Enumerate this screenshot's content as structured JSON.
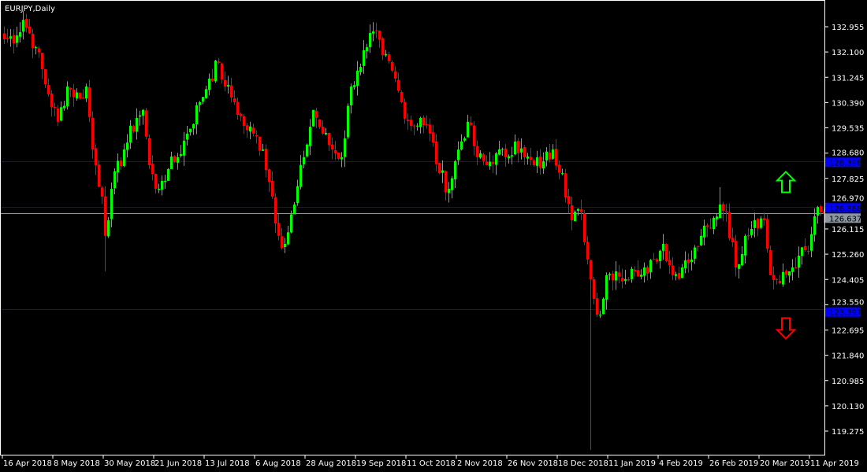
{
  "chart_data": {
    "type": "candlestick",
    "title": "EURJPY,Daily",
    "symbol": "EURJPY",
    "timeframe": "Daily",
    "ylim": [
      118.4,
      133.85
    ],
    "y_ticks": [
      "132.955",
      "132.100",
      "131.245",
      "130.390",
      "129.535",
      "128.680",
      "127.825",
      "126.970",
      "126.115",
      "125.260",
      "124.405",
      "123.550",
      "122.695",
      "121.840",
      "120.985",
      "120.130",
      "119.275"
    ],
    "x_ticks": [
      "16 Apr 2018",
      "8 May 2018",
      "30 May 2018",
      "21 Jun 2018",
      "13 Jul 2018",
      "6 Aug 2018",
      "28 Aug 2018",
      "19 Sep 2018",
      "11 Oct 2018",
      "2 Nov 2018",
      "26 Nov 2018",
      "18 Dec 2018",
      "11 Jan 2019",
      "4 Feb 2019",
      "26 Feb 2019",
      "20 Mar 2019",
      "11 Apr 2019"
    ],
    "bars_per_x_tick": 16,
    "close_keypoints": [
      [
        0,
        132.53
      ],
      [
        4,
        132.66
      ],
      [
        6,
        133.19
      ],
      [
        10,
        132.26
      ],
      [
        14,
        130.67
      ],
      [
        17,
        129.74
      ],
      [
        20,
        130.93
      ],
      [
        24,
        130.53
      ],
      [
        26,
        130.93
      ],
      [
        28,
        128.8
      ],
      [
        31,
        127.21
      ],
      [
        32,
        125.88
      ],
      [
        34,
        127.47
      ],
      [
        38,
        128.8
      ],
      [
        42,
        129.87
      ],
      [
        44,
        130.14
      ],
      [
        46,
        128.27
      ],
      [
        48,
        127.47
      ],
      [
        50,
        127.74
      ],
      [
        52,
        128.14
      ],
      [
        55,
        128.54
      ],
      [
        58,
        129.34
      ],
      [
        62,
        130.4
      ],
      [
        65,
        131.2
      ],
      [
        68,
        131.73
      ],
      [
        70,
        130.93
      ],
      [
        73,
        130.4
      ],
      [
        76,
        129.6
      ],
      [
        79,
        129.34
      ],
      [
        82,
        128.8
      ],
      [
        85,
        127.21
      ],
      [
        87,
        125.88
      ],
      [
        89,
        125.61
      ],
      [
        92,
        126.94
      ],
      [
        95,
        128.54
      ],
      [
        98,
        130.14
      ],
      [
        101,
        129.34
      ],
      [
        104,
        128.8
      ],
      [
        107,
        128.54
      ],
      [
        110,
        130.93
      ],
      [
        112,
        131.47
      ],
      [
        115,
        132.26
      ],
      [
        117,
        132.8
      ],
      [
        120,
        131.99
      ],
      [
        123,
        131.47
      ],
      [
        126,
        130.4
      ],
      [
        129,
        129.6
      ],
      [
        132,
        129.87
      ],
      [
        135,
        129.34
      ],
      [
        138,
        128.0
      ],
      [
        141,
        127.47
      ],
      [
        144,
        128.8
      ],
      [
        147,
        129.74
      ],
      [
        150,
        128.54
      ],
      [
        153,
        128.27
      ],
      [
        156,
        128.67
      ],
      [
        159,
        128.54
      ],
      [
        162,
        129.07
      ],
      [
        165,
        128.54
      ],
      [
        168,
        128.27
      ],
      [
        171,
        128.4
      ],
      [
        174,
        128.8
      ],
      [
        177,
        128.0
      ],
      [
        180,
        126.41
      ],
      [
        183,
        126.68
      ],
      [
        185,
        125.08
      ],
      [
        187,
        123.75
      ],
      [
        189,
        123.22
      ],
      [
        191,
        124.55
      ],
      [
        194,
        124.68
      ],
      [
        197,
        124.41
      ],
      [
        200,
        124.68
      ],
      [
        203,
        124.81
      ],
      [
        206,
        125.08
      ],
      [
        209,
        125.61
      ],
      [
        212,
        124.55
      ],
      [
        215,
        124.81
      ],
      [
        218,
        125.08
      ],
      [
        221,
        125.88
      ],
      [
        224,
        126.14
      ],
      [
        227,
        126.94
      ],
      [
        229,
        126.68
      ],
      [
        232,
        124.81
      ],
      [
        235,
        125.88
      ],
      [
        238,
        126.41
      ],
      [
        241,
        126.41
      ],
      [
        243,
        124.55
      ],
      [
        246,
        124.28
      ],
      [
        249,
        124.68
      ],
      [
        252,
        125.21
      ],
      [
        255,
        125.34
      ],
      [
        257,
        126.54
      ],
      [
        259,
        126.68
      ],
      [
        260,
        126.637
      ]
    ],
    "wick_extremes": [
      {
        "bar": 6,
        "high": 133.49
      },
      {
        "bar": 32,
        "low": 124.68
      },
      {
        "bar": 117,
        "high": 133.11
      },
      {
        "bar": 186,
        "low": 118.64
      },
      {
        "bar": 227,
        "high": 127.53
      }
    ],
    "horizontal_lines": [
      {
        "price": "128.398",
        "color": "#0000ff"
      },
      {
        "price": "126.868",
        "color": "#0000ff"
      },
      {
        "price": "123.397",
        "color": "#0000ff"
      },
      {
        "price": "126.637",
        "color": "#8c96a0",
        "current_bid": true
      }
    ],
    "arrows": [
      {
        "direction": "up",
        "color": "#00ff00",
        "price": 127.7
      },
      {
        "direction": "down",
        "color": "#ff0000",
        "price": 122.75
      }
    ],
    "colors": {
      "up": "#00ff00",
      "down": "#ff0000",
      "background": "#000000",
      "axis": "#ffffff"
    }
  }
}
